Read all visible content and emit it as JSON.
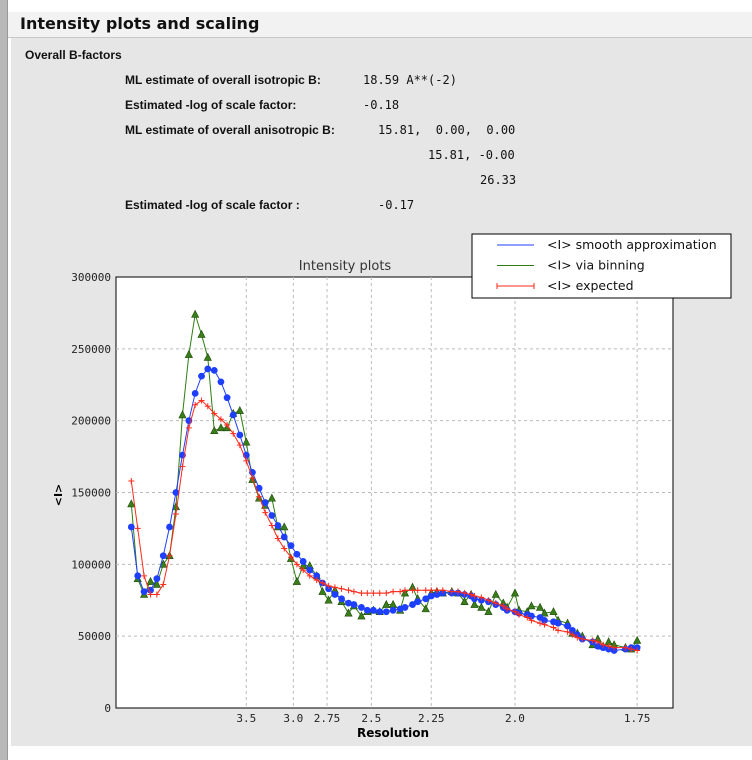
{
  "header": {
    "title": "Intensity plots and scaling"
  },
  "bfactors": {
    "section": "Overall B-factors",
    "iso_label": "ML estimate of overall isotropic B:",
    "iso_value": "18.59 A**(-2)",
    "scale1_label": "Estimated -log of scale factor:",
    "scale1_value": "-0.18",
    "aniso_label": "ML estimate of overall anisotropic B:",
    "aniso_row1": "15.81,  0.00,  0.00",
    "aniso_row2": "15.81, -0.00",
    "aniso_row3": "26.33",
    "scale2_label": "Estimated -log of scale factor :",
    "scale2_value": "-0.17"
  },
  "chart_data": {
    "type": "line",
    "title": "Intensity plots",
    "xlabel": "Resolution",
    "ylabel": "<I>",
    "x_scale": "1/d^2 (labelled in resolution, Å)",
    "xticks": [
      "3.5",
      "3.0",
      "2.75",
      "2.5",
      "2.25",
      "2.0",
      "1.75"
    ],
    "yticks": [
      "0",
      "50000",
      "100000",
      "150000",
      "200000",
      "250000",
      "300000"
    ],
    "ylim": [
      0,
      300000
    ],
    "grid": true,
    "legend": "top-right",
    "x": [
      10.21,
      8.57,
      7.54,
      6.8,
      6.25,
      5.81,
      5.46,
      5.16,
      4.9,
      4.68,
      4.49,
      4.32,
      4.17,
      4.03,
      3.9,
      3.79,
      3.69,
      3.59,
      3.5,
      3.42,
      3.34,
      3.27,
      3.2,
      3.14,
      3.08,
      3.02,
      2.97,
      2.92,
      2.87,
      2.82,
      2.78,
      2.74,
      2.7,
      2.66,
      2.62,
      2.59,
      2.55,
      2.52,
      2.49,
      2.46,
      2.43,
      2.4,
      2.37,
      2.35,
      2.32,
      2.3,
      2.27,
      2.25,
      2.23,
      2.21,
      2.18,
      2.16,
      2.14,
      2.12,
      2.11,
      2.09,
      2.07,
      2.05,
      2.03,
      2.02,
      2.0,
      1.99,
      1.97,
      1.96,
      1.94,
      1.93,
      1.91,
      1.9,
      1.88,
      1.87,
      1.86,
      1.85,
      1.83,
      1.82,
      1.81,
      1.8,
      1.79,
      1.77,
      1.76,
      1.75
    ],
    "series": [
      {
        "name": "<I> smooth approximation",
        "color": "#1f3fff",
        "marker": "circle",
        "values": [
          126000,
          92000,
          81000,
          82000,
          90000,
          106000,
          126000,
          150000,
          176000,
          200000,
          219000,
          231000,
          236000,
          235000,
          227000,
          216000,
          204000,
          190000,
          176000,
          164000,
          153000,
          143000,
          134000,
          127000,
          119000,
          113000,
          107000,
          102000,
          96000,
          92000,
          87000,
          83000,
          79000,
          76000,
          73000,
          72000,
          70000,
          68000,
          68000,
          67000,
          67000,
          68000,
          69000,
          70000,
          72000,
          74000,
          76000,
          78000,
          79000,
          80000,
          80000,
          80000,
          79000,
          78000,
          76000,
          75000,
          74000,
          72000,
          70000,
          68000,
          67000,
          66000,
          65000,
          64000,
          63000,
          61000,
          60000,
          59000,
          57000,
          54000,
          51000,
          48000,
          46000,
          43000,
          42000,
          41000,
          40000,
          41000,
          42000,
          42000
        ]
      },
      {
        "name": "<I> via binning",
        "color": "#2e7d12",
        "marker": "triangle",
        "values": [
          142000,
          90000,
          79000,
          88000,
          86000,
          100000,
          106000,
          140000,
          204000,
          246000,
          274000,
          260000,
          244000,
          193000,
          195000,
          195000,
          205000,
          207000,
          185000,
          159000,
          146000,
          141000,
          146000,
          126000,
          126000,
          104000,
          88000,
          99000,
          99000,
          92000,
          81000,
          75000,
          82000,
          74000,
          66000,
          71000,
          64000,
          67000,
          68000,
          67000,
          72000,
          72000,
          68000,
          80000,
          84000,
          76000,
          69000,
          80000,
          81000,
          80000,
          81000,
          80000,
          74000,
          79000,
          72000,
          70000,
          67000,
          79000,
          73000,
          70000,
          80000,
          68000,
          67000,
          71000,
          70000,
          66000,
          67000,
          61000,
          59000,
          52000,
          52000,
          50000,
          44000,
          48000,
          43000,
          46000,
          44000,
          42000,
          41000,
          47000
        ]
      },
      {
        "name": "<I> expected",
        "color": "#ff2a1a",
        "marker": "plus",
        "values": [
          158000,
          125000,
          92000,
          79000,
          79000,
          86000,
          106000,
          135000,
          168000,
          195000,
          211000,
          214000,
          210000,
          205000,
          201000,
          197000,
          191000,
          183000,
          172000,
          160000,
          147000,
          136000,
          127000,
          118000,
          111000,
          105000,
          100000,
          96000,
          92000,
          89000,
          87000,
          85000,
          84000,
          83000,
          82000,
          81000,
          80000,
          80000,
          80000,
          80000,
          80000,
          81000,
          81000,
          82000,
          82000,
          82000,
          82000,
          82000,
          82000,
          82000,
          81000,
          81000,
          80000,
          79000,
          78000,
          77000,
          75000,
          73000,
          71000,
          69000,
          67000,
          65000,
          63000,
          61000,
          59000,
          58000,
          56000,
          54000,
          53000,
          51000,
          49000,
          48000,
          47000,
          46000,
          44000,
          43000,
          42000,
          42000,
          41000,
          40000
        ]
      }
    ]
  }
}
